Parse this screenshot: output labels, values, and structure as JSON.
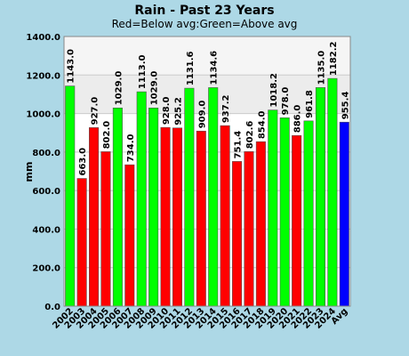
{
  "chart_data": {
    "type": "bar",
    "title": "Rain - Past 23 Years",
    "subtitle": "Red=Below avg:Green=Above avg",
    "xlabel": "",
    "ylabel": "mm",
    "ylim": [
      0,
      1400
    ],
    "yticks": [
      "0.0",
      "200.0",
      "400.0",
      "600.0",
      "800.0",
      "1000.0",
      "1200.0",
      "1400.0"
    ],
    "bands": [
      {
        "from": 1200,
        "to": 1400,
        "color": "#f5f5f5"
      },
      {
        "from": 1000,
        "to": 1200,
        "color": "#ececec"
      }
    ],
    "grid": true,
    "categories": [
      "2002",
      "2003",
      "2004",
      "2005",
      "2006",
      "2007",
      "2008",
      "2009",
      "2010",
      "2011",
      "2012",
      "2013",
      "2014",
      "2015",
      "2016",
      "2017",
      "2018",
      "2019",
      "2020",
      "2021",
      "2022",
      "2023",
      "2024",
      "Avg"
    ],
    "values": [
      1143.0,
      663.0,
      927.0,
      802.0,
      1029.0,
      734.0,
      1113.0,
      1029.0,
      928.0,
      925.2,
      1131.6,
      909.0,
      1134.6,
      937.2,
      751.4,
      802.6,
      854.0,
      1018.2,
      978.0,
      886.0,
      961.8,
      1135.0,
      1182.2,
      955.4
    ],
    "value_labels": [
      "1143.0",
      "663.0",
      "927.0",
      "802.0",
      "1029.0",
      "734.0",
      "1113.0",
      "1029.0",
      "928.0",
      "925.2",
      "1131.6",
      "909.0",
      "1134.6",
      "937.2",
      "751.4",
      "802.6",
      "854.0",
      "1018.2",
      "978.0",
      "886.0",
      "961.8",
      "1135.0",
      "1182.2",
      "955.4"
    ],
    "colors": {
      "above": "#00ff00",
      "below": "#ff0000",
      "avg": "#0000ff",
      "plot_bg": "#ffffff",
      "page_bg": "#add8e6"
    }
  }
}
